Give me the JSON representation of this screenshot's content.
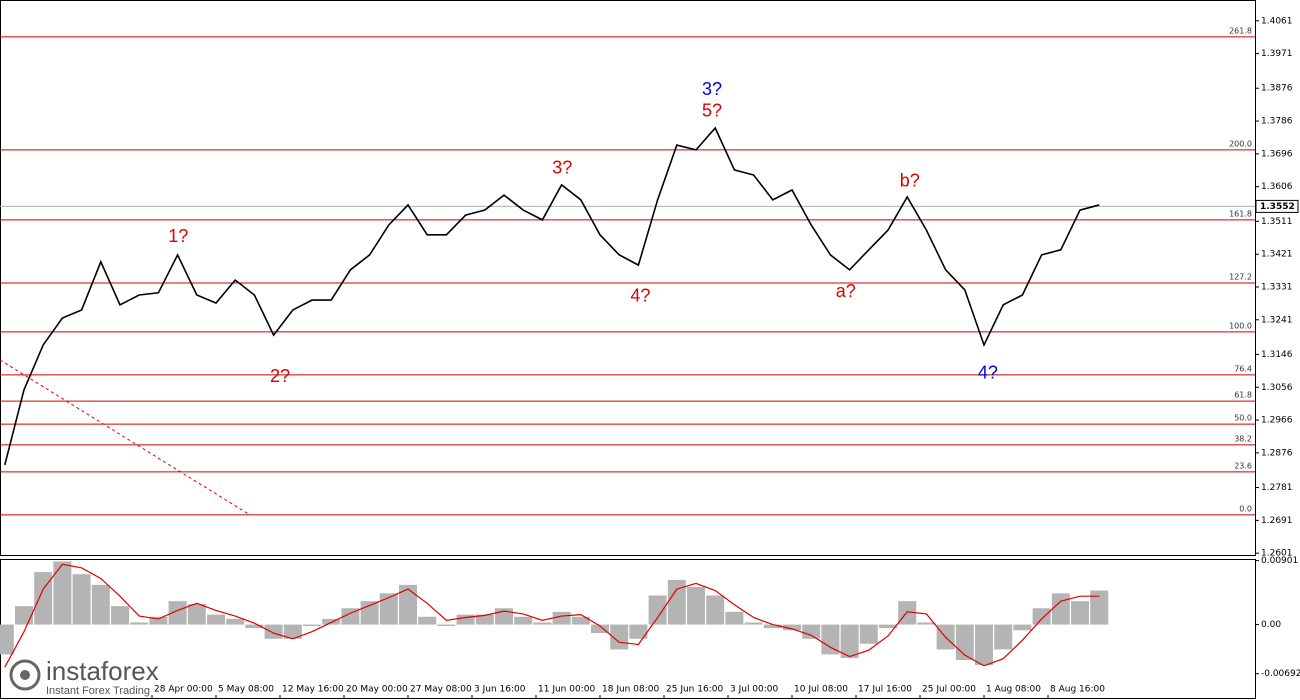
{
  "chart_data": [
    {
      "type": "line",
      "color": "#000000",
      "x": [
        -23,
        -20,
        -17,
        -14,
        -11,
        -8,
        -5,
        -2,
        1,
        4,
        7,
        10,
        13,
        16,
        19,
        22,
        25,
        28,
        31,
        34,
        37,
        40,
        43,
        46,
        49,
        52,
        55,
        58,
        61,
        64,
        67,
        70,
        73,
        76,
        79,
        82,
        85,
        88,
        91,
        94,
        97,
        100,
        103,
        106,
        109,
        112,
        115,
        118,
        121,
        124,
        127,
        130,
        133,
        136,
        139,
        142,
        145,
        148
      ],
      "values": [
        1.2843,
        1.3049,
        1.3172,
        1.3246,
        1.3268,
        1.34,
        1.3282,
        1.3309,
        1.3315,
        1.3419,
        1.3309,
        1.3287,
        1.335,
        1.3309,
        1.3199,
        1.3268,
        1.3295,
        1.3295,
        1.3378,
        1.3419,
        1.3501,
        1.3556,
        1.3474,
        1.3474,
        1.3528,
        1.3542,
        1.3583,
        1.3542,
        1.3515,
        1.3611,
        1.357,
        1.3474,
        1.3419,
        1.3391,
        1.357,
        1.372,
        1.3707,
        1.3767,
        1.3652,
        1.3638,
        1.357,
        1.3597,
        1.3501,
        1.3419,
        1.3378,
        1.3433,
        1.3487,
        1.3578,
        1.3487,
        1.3378,
        1.3323,
        1.3172,
        1.3282,
        1.3309,
        1.3419,
        1.3433,
        1.3542,
        1.3556
      ],
      "xlim": [
        -23.75,
        172.34
      ],
      "ylim": [
        1.2596,
        1.4118
      ],
      "xticks": [
        {
          "value": 0,
          "label": "28 Apr 00:00"
        },
        {
          "value": 10,
          "label": "5 May 08:00"
        },
        {
          "value": 20,
          "label": "12 May 16:00"
        },
        {
          "value": 30,
          "label": "20 May 00:00"
        },
        {
          "value": 40,
          "label": "27 May 08:00"
        },
        {
          "value": 50,
          "label": "3 Jun 16:00"
        },
        {
          "value": 60,
          "label": "11 Jun 00:00"
        },
        {
          "value": 70,
          "label": "18 Jun 08:00"
        },
        {
          "value": 80,
          "label": "25 Jun 16:00"
        },
        {
          "value": 90,
          "label": "3 Jul 00:00"
        },
        {
          "value": 100,
          "label": "10 Jul 08:00"
        },
        {
          "value": 110,
          "label": "17 Jul 16:00"
        },
        {
          "value": 120,
          "label": "25 Jul 00:00"
        },
        {
          "value": 130,
          "label": "1 Aug 08:00"
        },
        {
          "value": 140,
          "label": "8 Aug 16:00"
        }
      ],
      "yticks": [
        1.4061,
        1.3971,
        1.3876,
        1.3786,
        1.3696,
        1.3606,
        1.3511,
        1.3421,
        1.3331,
        1.3241,
        1.3146,
        1.3056,
        1.2966,
        1.2876,
        1.2781,
        1.2691,
        1.2601
      ],
      "current_price": 1.3552,
      "levels_color": "#d00000",
      "levels": [
        {
          "label": "261.8",
          "value": 1.4017
        },
        {
          "label": "200.0",
          "value": 1.3707
        },
        {
          "label": "161.8",
          "value": 1.3515
        },
        {
          "label": "127.2",
          "value": 1.3342
        },
        {
          "label": "100.0",
          "value": 1.3208
        },
        {
          "label": "76.4",
          "value": 1.309
        },
        {
          "label": "61.8",
          "value": 1.3018
        },
        {
          "label": "50.0",
          "value": 1.2955
        },
        {
          "label": "38.2",
          "value": 1.2898
        },
        {
          "label": "23.6",
          "value": 1.2824
        },
        {
          "label": "0.0",
          "value": 1.2706
        }
      ],
      "trendline": {
        "x": [
          -23.75,
          15.3
        ],
        "y": [
          1.3131,
          1.2706
        ],
        "color": "#e00000"
      },
      "annotations": [
        {
          "text": "1?",
          "color": "#e00000",
          "x": 4.1,
          "y": 1.3468
        },
        {
          "text": "2?",
          "color": "#e00000",
          "x": 20,
          "y": 1.3084
        },
        {
          "text": "3?",
          "color": "#e00000",
          "x": 64.1,
          "y": 1.3655
        },
        {
          "text": "4?",
          "color": "#e00000",
          "x": 76.3,
          "y": 1.3304
        },
        {
          "text": "3?",
          "color": "#0000e0",
          "x": 87.5,
          "y": 1.3871
        },
        {
          "text": "5?",
          "color": "#e00000",
          "x": 87.5,
          "y": 1.3811
        },
        {
          "text": "a?",
          "color": "#e00000",
          "x": 108.4,
          "y": 1.3317
        },
        {
          "text": "b?",
          "color": "#e00000",
          "x": 118.4,
          "y": 1.3619
        },
        {
          "text": "4?",
          "color": "#0000e0",
          "x": 130.6,
          "y": 1.3093
        }
      ]
    },
    {
      "type": "macd",
      "ylim": [
        -0.0102,
        0.0091
      ],
      "yticks": [
        0.00901,
        {
          "value": 0,
          "label": "0.00"
        },
        -0.00692
      ],
      "series": [
        {
          "color": "#b4b4b4",
          "values": [
            -0.0042,
            0.0026,
            0.0074,
            0.0089,
            0.0071,
            0.0056,
            0.0026,
            0.0003,
            0.0011,
            0.0033,
            0.0029,
            0.0014,
            0.0008,
            -0.0005,
            -0.002,
            -0.002,
            -0.0002,
            0.0008,
            0.0023,
            0.0033,
            0.0044,
            0.0056,
            0.0011,
            -0.0002,
            0.0014,
            0.0014,
            0.0023,
            0.0011,
            0.0003,
            0.0018,
            0.0011,
            -0.0012,
            -0.0035,
            -0.002,
            0.0041,
            0.0063,
            0.0053,
            0.0041,
            0.0018,
            0.0003,
            -0.0005,
            -0.0008,
            -0.002,
            -0.0042,
            -0.0047,
            -0.0027,
            -0.0005,
            0.0033,
            0.0003,
            -0.0035,
            -0.005,
            -0.0057,
            -0.0035,
            -0.0008,
            0.0023,
            0.0044,
            0.0033,
            0.0048
          ]
        },
        {
          "color": "#e00000",
          "values": [
            -0.006,
            -0.001,
            0.005,
            0.0085,
            0.008,
            0.0065,
            0.004,
            0.0012,
            0.0008,
            0.002,
            0.003,
            0.002,
            0.0012,
            0.0002,
            -0.0012,
            -0.002,
            -0.001,
            0.0003,
            0.0016,
            0.0027,
            0.0038,
            0.005,
            0.003,
            0.0006,
            0.001,
            0.0013,
            0.0019,
            0.0015,
            0.0006,
            0.0012,
            0.0014,
            -0.0002,
            -0.0025,
            -0.0028,
            0.001,
            0.005,
            0.0058,
            0.0048,
            0.0028,
            0.001,
            0.0,
            -0.0006,
            -0.0015,
            -0.0032,
            -0.0045,
            -0.0036,
            -0.0016,
            0.0018,
            0.0015,
            -0.0018,
            -0.0043,
            -0.0058,
            -0.0048,
            -0.0022,
            0.0008,
            0.0033,
            0.004,
            0.004
          ]
        }
      ]
    }
  ],
  "watermark": {
    "brand": "instaforex",
    "tagline": "Instant Forex Trading"
  }
}
